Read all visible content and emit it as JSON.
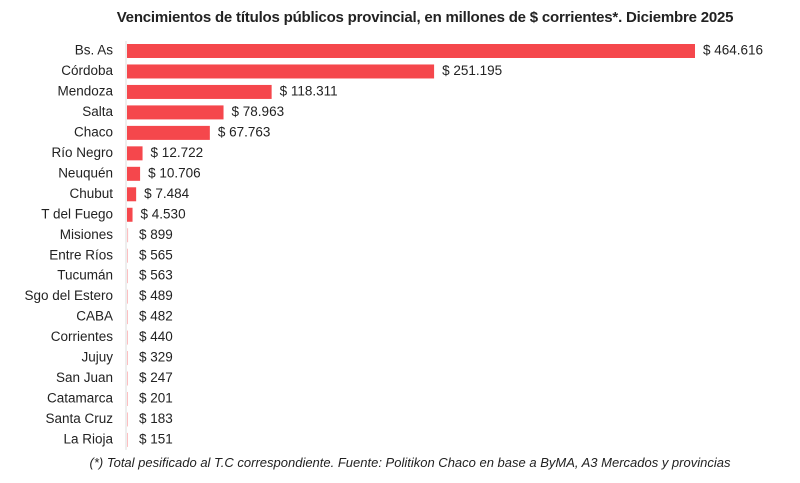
{
  "chart_data": {
    "type": "bar",
    "orientation": "horizontal",
    "title": "Vencimientos de títulos públicos provincial, en millones de $ corrientes*. Diciembre 2025",
    "footnote": "(*) Total pesificado al T.C correspondiente. Fuente: Politikon Chaco en base a ByMA, A3 Mercados y provincias",
    "categories": [
      "Bs. As",
      "Córdoba",
      "Mendoza",
      "Salta",
      "Chaco",
      "Río Negro",
      "Neuquén",
      "Chubut",
      "T del Fuego",
      "Misiones",
      "Entre Ríos",
      "Tucumán",
      "Sgo del Estero",
      "CABA",
      "Corrientes",
      "Jujuy",
      "San Juan",
      "Catamarca",
      "Santa Cruz",
      "La Rioja"
    ],
    "values": [
      464616,
      251195,
      118311,
      78963,
      67763,
      12722,
      10706,
      7484,
      4530,
      899,
      565,
      563,
      489,
      482,
      440,
      329,
      247,
      201,
      183,
      151
    ],
    "data_labels": [
      "$ 464.616",
      "$ 251.195",
      "$ 118.311",
      "$ 78.963",
      "$ 67.763",
      "$ 12.722",
      "$ 10.706",
      "$ 7.484",
      "$ 4.530",
      "$ 899",
      "$ 565",
      "$ 563",
      "$ 489",
      "$ 482",
      "$ 440",
      "$ 329",
      "$ 247",
      "$ 201",
      "$ 183",
      "$ 151"
    ],
    "bar_color": "#f5474c",
    "grid": false,
    "legend": "none"
  }
}
